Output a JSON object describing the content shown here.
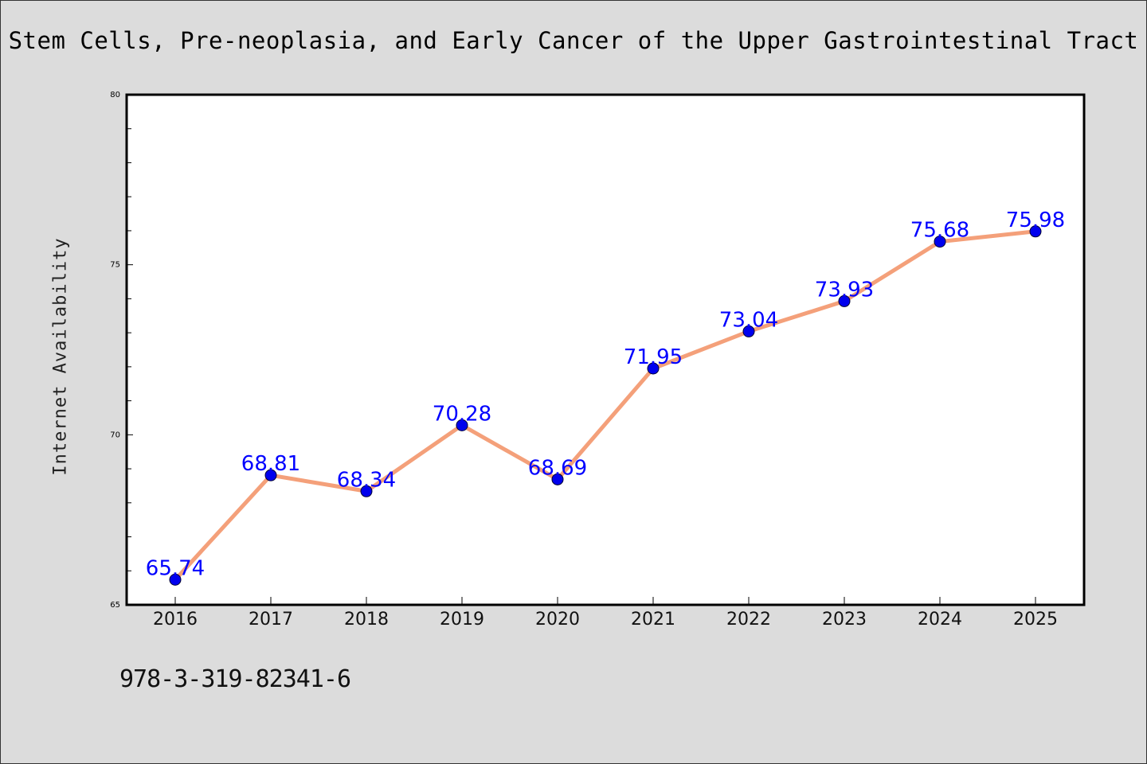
{
  "title": "Stem Cells, Pre-neoplasia, and Early Cancer of the Upper Gastrointestinal Tract",
  "footer_text": "978-3-319-82341-6",
  "colors": {
    "background": "#dcdcdc",
    "plot_background": "#ffffff",
    "line": "#f4a07a",
    "marker": "#0000ee",
    "data_label": "#0000ff"
  },
  "chart_data": {
    "type": "line",
    "title": "Stem Cells, Pre-neoplasia, and Early Cancer of the Upper Gastrointestinal Tract",
    "xlabel": "",
    "ylabel": "Internet Availability",
    "categories": [
      "2016",
      "2017",
      "2018",
      "2019",
      "2020",
      "2021",
      "2022",
      "2023",
      "2024",
      "2025"
    ],
    "series": [
      {
        "values": [
          65.74,
          68.81,
          68.34,
          70.28,
          68.69,
          71.95,
          73.04,
          73.93,
          75.68,
          75.98
        ],
        "labels": [
          "65.74",
          "68.81",
          "68.34",
          "70.28",
          "68.69",
          "71.95",
          "73.04",
          "73.93",
          "75.68",
          "75.98"
        ]
      }
    ],
    "ylim": [
      65,
      80
    ],
    "yticks": [
      "65",
      "70",
      "75",
      "80"
    ],
    "grid": false,
    "legend": "none"
  }
}
